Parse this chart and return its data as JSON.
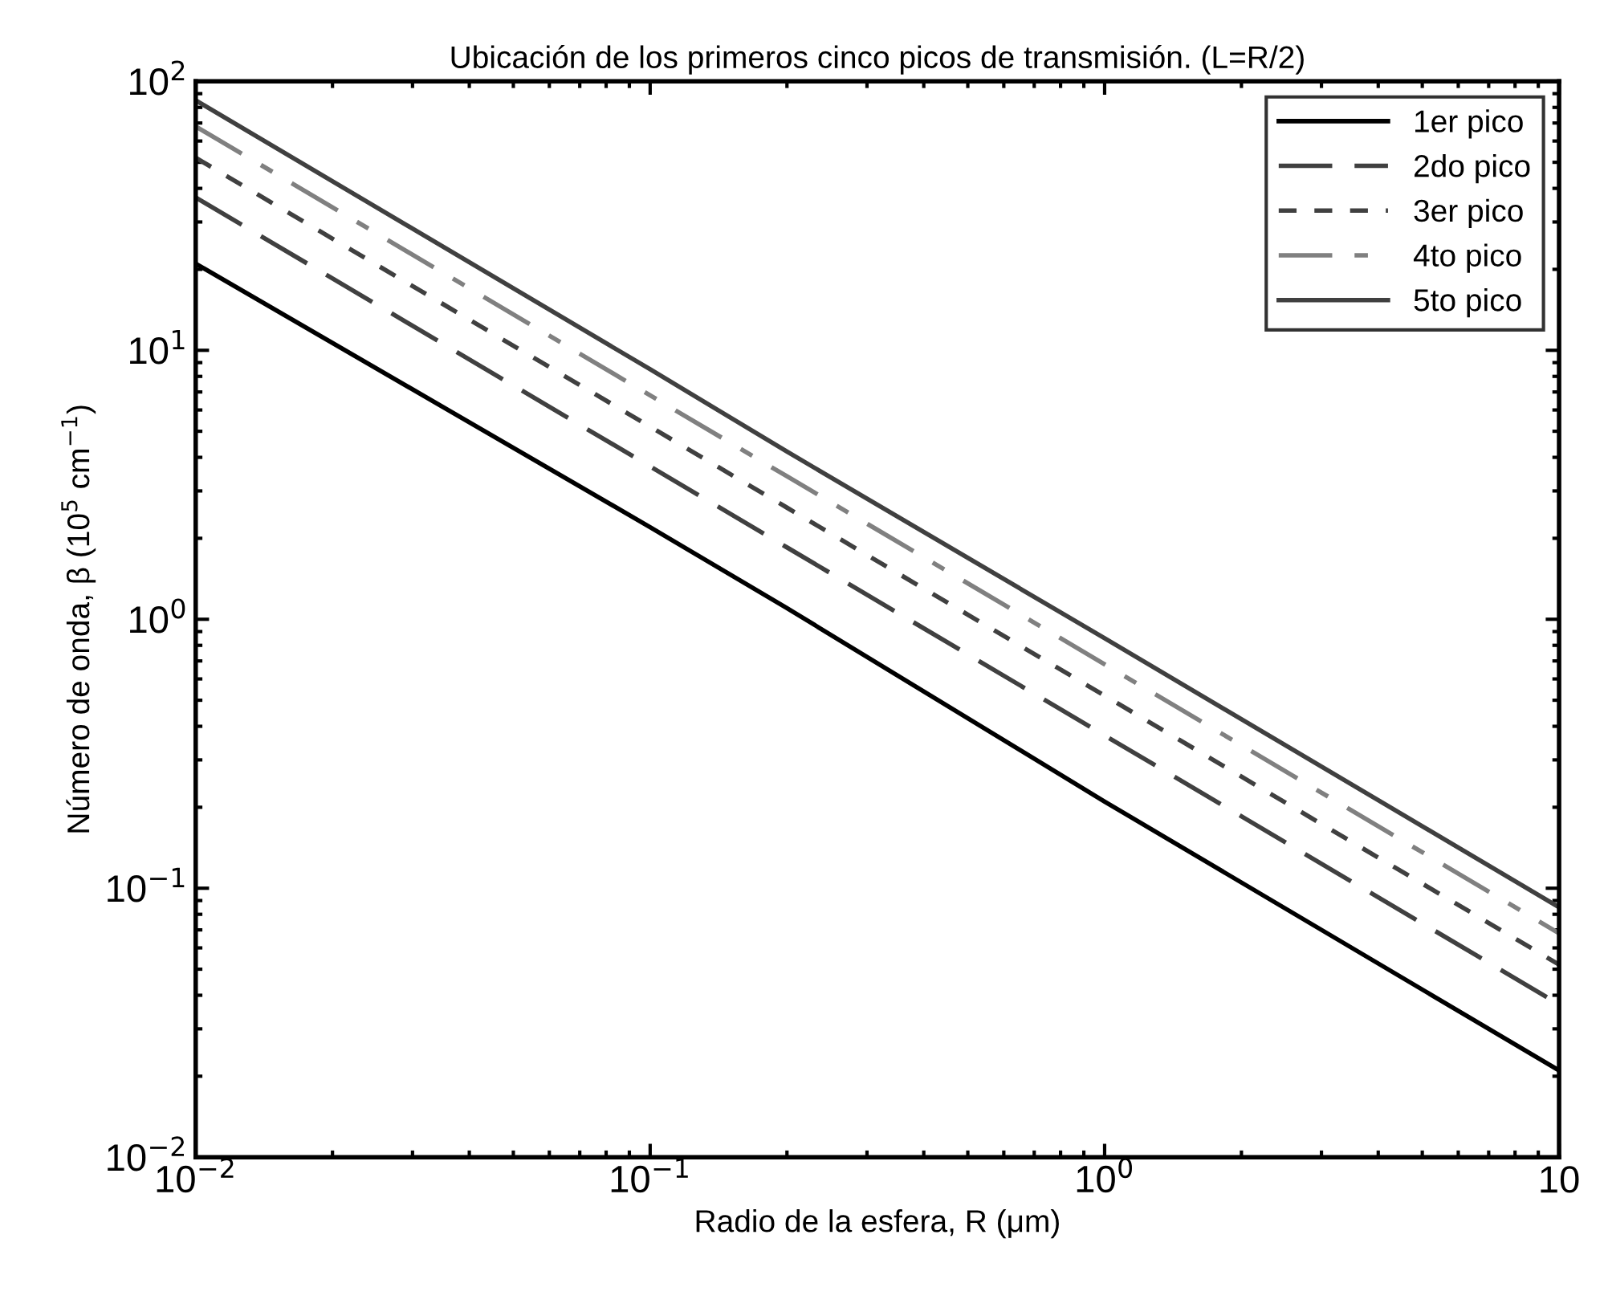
{
  "chart_data": {
    "type": "line",
    "title": "Ubicación de los primeros cinco picos de transmisión. (L=R/2)",
    "xlabel": "Radio de la esfera, R (μm)",
    "ylabel": "Número de onda, β (10$^{5}$ cm$^{−1}$)",
    "log": "xy",
    "xlim": [
      0.01,
      10
    ],
    "ylim": [
      0.01,
      100
    ],
    "xticks": [
      {
        "value": 0.01,
        "label": "10$^{−2}$"
      },
      {
        "value": 0.1,
        "label": "10$^{−1}$"
      },
      {
        "value": 1,
        "label": "10$^{0}$"
      },
      10
    ],
    "yticks": [
      {
        "value": 0.01,
        "label": "10$^{−2}$"
      },
      {
        "value": 0.1,
        "label": "10$^{−1}$"
      },
      {
        "value": 1,
        "label": "10$^{0}$"
      },
      {
        "value": 10,
        "label": "10$^{1}$"
      },
      {
        "value": 100,
        "label": "10$^{2}$"
      }
    ],
    "x": [
      0.01,
      0.1,
      0.2,
      1,
      10
    ],
    "series": [
      {
        "name": "1er pico",
        "color": "#000000",
        "line_style": "solid",
        "values": [
          21,
          2.2,
          1.1,
          0.21,
          0.021
        ]
      },
      {
        "name": "2do pico",
        "color": "#404040",
        "line_style": "dashed",
        "values": [
          37,
          3.7,
          1.85,
          0.37,
          0.037
        ]
      },
      {
        "name": "3er pico",
        "color": "#404040",
        "line_style": "dotted",
        "values": [
          52,
          5.2,
          2.6,
          0.52,
          0.052
        ]
      },
      {
        "name": "4to pico",
        "color": "#808080",
        "line_style": "dashdot",
        "values": [
          68,
          6.8,
          3.4,
          0.68,
          0.068
        ]
      },
      {
        "name": "5to pico",
        "color": "#404040",
        "line_style": "solid",
        "values": [
          85,
          8.5,
          4.2,
          0.85,
          0.085
        ]
      }
    ],
    "legend": "top right",
    "grid": false
  }
}
